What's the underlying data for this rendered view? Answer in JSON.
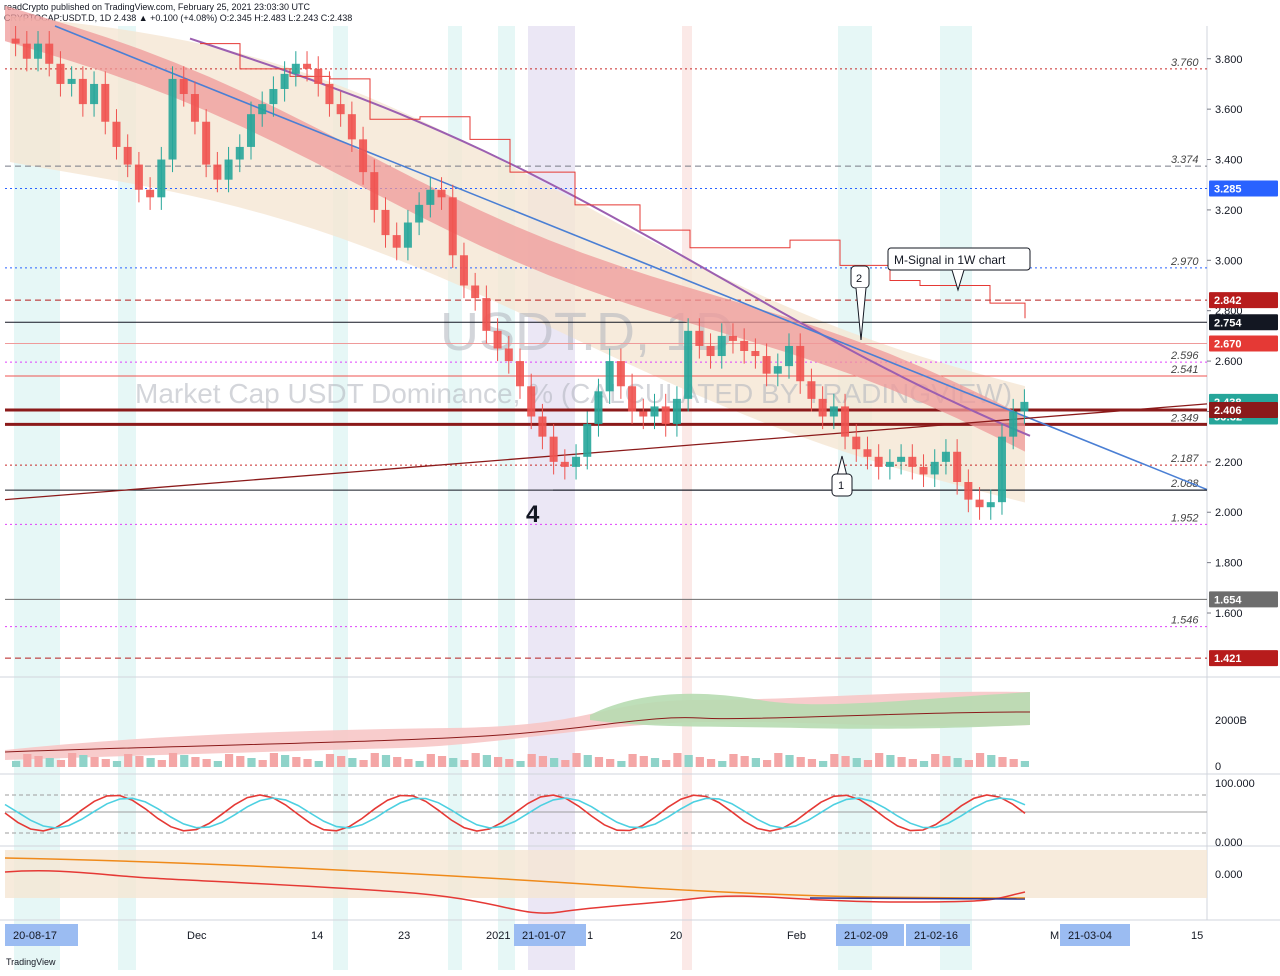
{
  "header": {
    "line1": "readCrypto published on TradingView.com, February 25, 2021 23:03:30 UTC",
    "symbol": "CRYPTOCAP:USDT.D, 1D",
    "ohlc": "2.438 ▲ +0.100 (+4.08%) O:2.345 H:2.483 L:2.243 C:2.438"
  },
  "watermark": {
    "symbol": "USDT.D, 1D",
    "description": "Market Cap USDT Dominance, % (CALCULATED BY TRADINGVIEW)"
  },
  "annotations": {
    "msignal": "M-Signal in 1W chart",
    "callout1": "1",
    "callout2": "2",
    "big_label": "4"
  },
  "footer": {
    "logo_text": "TradingView"
  },
  "colors": {
    "up": "#26a69a",
    "down": "#ef5350",
    "trendline_blue": "#4a7fd4",
    "trendline_red": "#8b1a1a",
    "ma_purple": "#9c5fb0",
    "band_red": "#ef9a9a",
    "cloud_beige": "#f5e6d3",
    "stairs_red": "#e53935"
  },
  "chart_data": {
    "type": "candlestick",
    "symbol": "CRYPTOCAP:USDT.D",
    "interval": "1D",
    "last": {
      "open": 2.345,
      "high": 2.483,
      "low": 2.243,
      "close": 2.438,
      "change": 0.1,
      "change_pct": 4.08
    },
    "ylim": [
      1.35,
      3.93
    ],
    "y_ticks": [
      "3.800",
      "3.600",
      "3.400",
      "3.200",
      "3.000",
      "2.800",
      "2.600",
      "2.400",
      "2.200",
      "2.000",
      "1.800",
      "1.600"
    ],
    "x_ticks": [
      "Dec",
      "14",
      "23",
      "2021",
      "1",
      "20",
      "Feb",
      "M",
      "15"
    ],
    "x_highlight_labels": [
      "20-08-17",
      "21-01-07",
      "21-02-09",
      "21-02-16",
      "21-03-04"
    ],
    "price_tags": [
      {
        "text": "3.285",
        "value": 3.285,
        "color": "#2962ff"
      },
      {
        "text": "2.842",
        "value": 2.842,
        "color": "#b71c1c"
      },
      {
        "text": "2.754",
        "value": 2.754,
        "color": "#131722"
      },
      {
        "text": "2.670",
        "value": 2.67,
        "color": "#e53935"
      },
      {
        "text": "2.438",
        "value": 2.438,
        "color": "#26a69a"
      },
      {
        "text": "56:32",
        "value": 2.38,
        "color": "#26a69a"
      },
      {
        "text": "2.406",
        "value": 2.406,
        "color": "#8b1a1a"
      },
      {
        "text": "1.654",
        "value": 1.654,
        "color": "#6d6d6d"
      },
      {
        "text": "1.421",
        "value": 1.421,
        "color": "#b71c1c"
      }
    ],
    "horizontal_levels": [
      {
        "text": "3.760",
        "value": 3.76,
        "color": "#c62828",
        "style": "dotted"
      },
      {
        "text": "3.374",
        "value": 3.374,
        "color": "#787b86",
        "style": "dashed"
      },
      {
        "text": "",
        "value": 3.285,
        "color": "#2962ff",
        "style": "dotted"
      },
      {
        "text": "2.970",
        "value": 2.97,
        "color": "#2962ff",
        "style": "dotted"
      },
      {
        "text": "",
        "value": 2.842,
        "color": "#b71c1c",
        "style": "dashed"
      },
      {
        "text": "",
        "value": 2.754,
        "color": "#131722",
        "style": "solid"
      },
      {
        "text": "",
        "value": 2.67,
        "color": "#ef9a9a",
        "style": "solid"
      },
      {
        "text": "2.596",
        "value": 2.596,
        "color": "#e040fb",
        "style": "dotted"
      },
      {
        "text": "2.541",
        "value": 2.541,
        "color": "#ef5350",
        "style": "solid"
      },
      {
        "text": "",
        "value": 2.406,
        "color": "#8b1a1a",
        "style": "thick"
      },
      {
        "text": "2.349",
        "value": 2.349,
        "color": "#8b1a1a",
        "style": "thick"
      },
      {
        "text": "2.187",
        "value": 2.187,
        "color": "#c62828",
        "style": "dotted"
      },
      {
        "text": "2.088",
        "value": 2.088,
        "color": "#131722",
        "style": "solid"
      },
      {
        "text": "1.952",
        "value": 1.952,
        "color": "#e040fb",
        "style": "dotted"
      },
      {
        "text": "",
        "value": 1.654,
        "color": "#6d6d6d",
        "style": "solid"
      },
      {
        "text": "1.546",
        "value": 1.546,
        "color": "#e040fb",
        "style": "dotted"
      },
      {
        "text": "",
        "value": 1.421,
        "color": "#b71c1c",
        "style": "dashed"
      }
    ],
    "close_series": [
      3.86,
      3.8,
      3.86,
      3.78,
      3.7,
      3.72,
      3.62,
      3.7,
      3.55,
      3.45,
      3.38,
      3.28,
      3.25,
      3.4,
      3.72,
      3.66,
      3.55,
      3.38,
      3.32,
      3.4,
      3.45,
      3.58,
      3.62,
      3.68,
      3.74,
      3.78,
      3.76,
      3.7,
      3.62,
      3.58,
      3.48,
      3.35,
      3.2,
      3.1,
      3.05,
      3.15,
      3.22,
      3.28,
      3.25,
      3.02,
      2.9,
      2.85,
      2.72,
      2.65,
      2.6,
      2.5,
      2.38,
      2.3,
      2.2,
      2.18,
      2.22,
      2.35,
      2.48,
      2.6,
      2.5,
      2.4,
      2.38,
      2.42,
      2.35,
      2.45,
      2.72,
      2.66,
      2.62,
      2.7,
      2.68,
      2.64,
      2.62,
      2.55,
      2.58,
      2.66,
      2.52,
      2.45,
      2.38,
      2.42,
      2.3,
      2.25,
      2.22,
      2.18,
      2.2,
      2.22,
      2.18,
      2.15,
      2.2,
      2.24,
      2.12,
      2.05,
      2.02,
      2.04,
      2.3,
      2.4,
      2.438
    ],
    "volume_axis_label": "2000B",
    "volume_ticks": [
      "2000B",
      "0"
    ],
    "osc_ticks": [
      "100.000",
      "0.000"
    ],
    "osc2_ticks": [
      "0.000"
    ]
  }
}
